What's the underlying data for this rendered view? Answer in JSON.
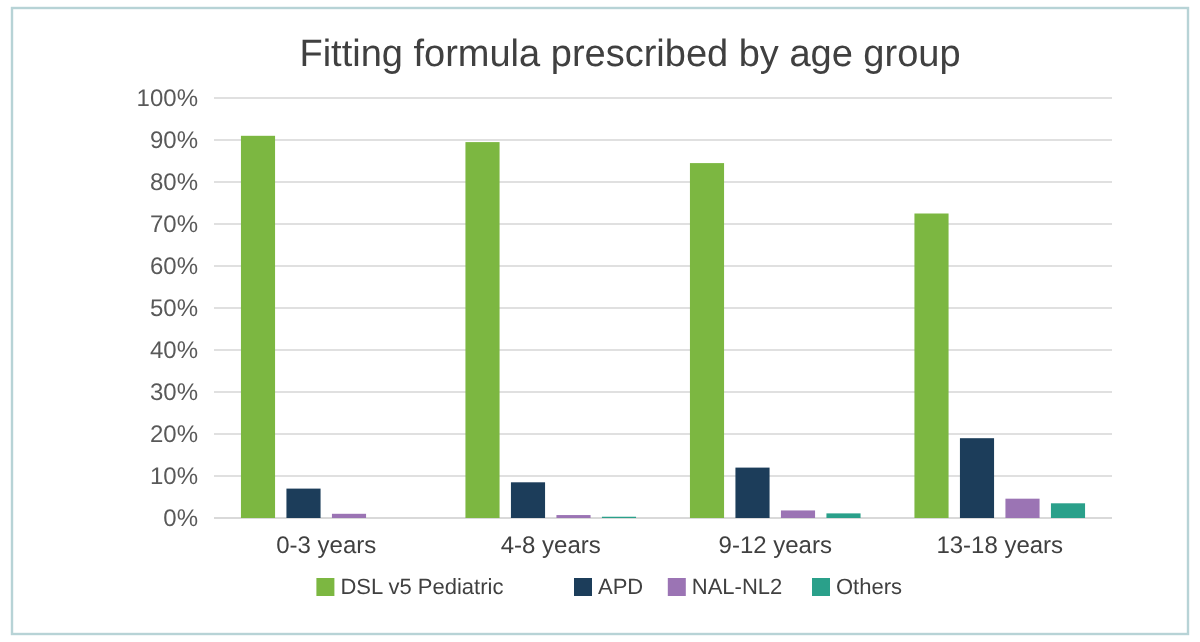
{
  "chart_data": {
    "type": "bar",
    "title": "Fitting formula prescribed by age group",
    "categories": [
      "0-3 years",
      "4-8 years",
      "9-12 years",
      "13-18 years"
    ],
    "series": [
      {
        "name": "DSL v5 Pediatric",
        "color": "#7cb741",
        "values": [
          91,
          89.5,
          84.5,
          72.5
        ]
      },
      {
        "name": "APD",
        "color": "#1c3d5a",
        "values": [
          7,
          8.5,
          12,
          19
        ]
      },
      {
        "name": "NAL-NL2",
        "color": "#9b74b4",
        "values": [
          1,
          0.7,
          1.8,
          4.6
        ]
      },
      {
        "name": "Others",
        "color": "#2aa08a",
        "values": [
          0,
          0.3,
          1.1,
          3.5
        ]
      }
    ],
    "ylim": [
      0,
      100
    ],
    "yticks": [
      {
        "value": 0,
        "label": "0%"
      },
      {
        "value": 10,
        "label": "10%"
      },
      {
        "value": 20,
        "label": "20%"
      },
      {
        "value": 30,
        "label": "30%"
      },
      {
        "value": 40,
        "label": "40%"
      },
      {
        "value": 50,
        "label": "50%"
      },
      {
        "value": 60,
        "label": "60%"
      },
      {
        "value": 70,
        "label": "70%"
      },
      {
        "value": 80,
        "label": "80%"
      },
      {
        "value": 90,
        "label": "90%"
      },
      {
        "value": 100,
        "label": "100%"
      }
    ],
    "grid": "y",
    "legend": "bottom"
  }
}
